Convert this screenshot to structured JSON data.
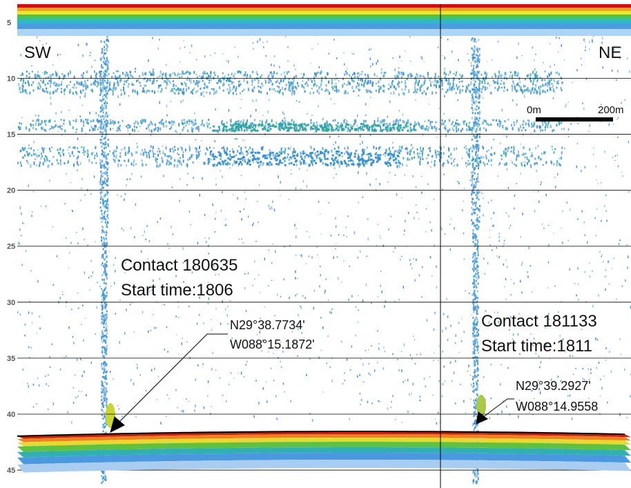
{
  "chart_data": {
    "type": "echogram",
    "ylim": [
      3,
      46.6
    ],
    "yticks": [
      5,
      10,
      15,
      20,
      25,
      30,
      35,
      40,
      45
    ],
    "grid": true,
    "annotations": [
      "SW",
      "NE",
      "0m",
      "200m",
      "Contact 180635",
      "Start time:1806",
      "N29°38.7734'",
      "W088°15.1872'",
      "Contact 181133",
      "Start time:1811",
      "N29°39.2927'",
      "W088°14.9558"
    ]
  }
}
